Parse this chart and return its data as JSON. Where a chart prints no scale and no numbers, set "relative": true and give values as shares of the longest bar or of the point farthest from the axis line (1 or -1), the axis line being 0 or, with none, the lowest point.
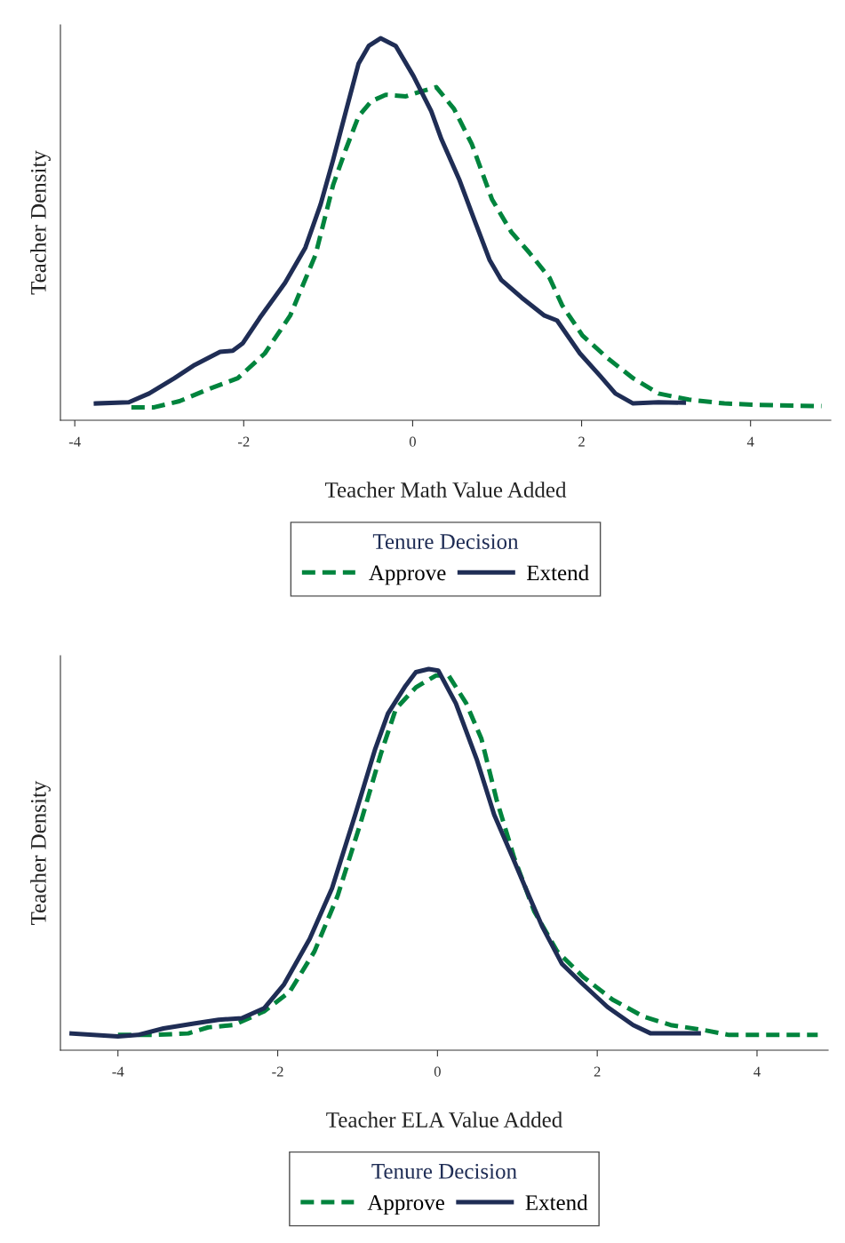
{
  "chart_data": [
    {
      "type": "line",
      "relative": true,
      "xlabel": "Teacher Math Value Added",
      "ylabel": "Teacher Density",
      "legend_title": "Tenure Decision",
      "legend": "bottom",
      "xlim": [
        -4.17,
        4.95
      ],
      "xticks": [
        -4,
        -2,
        0,
        2,
        4
      ],
      "grid": false,
      "marker": "none",
      "series": [
        {
          "name": "Approve",
          "color": "#00843d",
          "line_style": "dashed",
          "x": [
            -3.33,
            -3.06,
            -2.76,
            -2.4,
            -2.07,
            -1.75,
            -1.45,
            -1.15,
            -0.94,
            -0.79,
            -0.64,
            -0.49,
            -0.32,
            -0.08,
            0.1,
            0.28,
            0.49,
            0.7,
            0.94,
            1.17,
            1.38,
            1.62,
            1.77,
            2.01,
            2.31,
            2.61,
            2.91,
            3.27,
            3.69,
            4.1,
            4.84
          ],
          "values": [
            0.034,
            0.034,
            0.05,
            0.083,
            0.11,
            0.175,
            0.274,
            0.433,
            0.617,
            0.71,
            0.796,
            0.835,
            0.852,
            0.848,
            0.861,
            0.872,
            0.815,
            0.723,
            0.578,
            0.492,
            0.439,
            0.373,
            0.301,
            0.222,
            0.162,
            0.11,
            0.07,
            0.054,
            0.044,
            0.04,
            0.037
          ]
        },
        {
          "name": "Extend",
          "color": "#1f2d55",
          "line_style": "solid",
          "x": [
            -3.75,
            -3.36,
            -3.12,
            -2.82,
            -2.58,
            -2.28,
            -2.13,
            -2.01,
            -1.81,
            -1.51,
            -1.27,
            -1.09,
            -0.94,
            -0.79,
            -0.64,
            -0.52,
            -0.38,
            -0.2,
            0.01,
            0.22,
            0.34,
            0.55,
            0.73,
            0.91,
            1.05,
            1.29,
            1.56,
            1.71,
            1.98,
            2.22,
            2.4,
            2.61,
            2.91,
            3.21
          ],
          "values": [
            0.044,
            0.047,
            0.07,
            0.11,
            0.145,
            0.179,
            0.182,
            0.202,
            0.268,
            0.36,
            0.452,
            0.565,
            0.683,
            0.809,
            0.934,
            0.98,
            1.0,
            0.98,
            0.901,
            0.809,
            0.736,
            0.631,
            0.525,
            0.42,
            0.367,
            0.321,
            0.274,
            0.261,
            0.175,
            0.116,
            0.07,
            0.044,
            0.047,
            0.046
          ]
        }
      ]
    },
    {
      "type": "line",
      "relative": true,
      "xlabel": "Teacher ELA Value Added",
      "ylabel": "Teacher Density",
      "legend_title": "Tenure Decision",
      "legend": "bottom",
      "xlim": [
        -4.72,
        4.89
      ],
      "xticks": [
        -4,
        -2,
        0,
        2,
        4
      ],
      "grid": false,
      "marker": "none",
      "series": [
        {
          "name": "Approve",
          "color": "#00843d",
          "line_style": "dashed",
          "x": [
            -4.0,
            -3.56,
            -3.12,
            -2.87,
            -2.55,
            -2.17,
            -1.85,
            -1.54,
            -1.25,
            -0.97,
            -0.71,
            -0.52,
            -0.27,
            -0.02,
            0.14,
            0.36,
            0.55,
            0.74,
            0.96,
            1.21,
            1.5,
            1.82,
            2.19,
            2.57,
            2.92,
            3.33,
            3.65,
            4.76
          ],
          "values": [
            0.04,
            0.04,
            0.044,
            0.06,
            0.066,
            0.102,
            0.153,
            0.259,
            0.405,
            0.591,
            0.777,
            0.896,
            0.952,
            0.983,
            0.983,
            0.91,
            0.817,
            0.657,
            0.505,
            0.365,
            0.259,
            0.193,
            0.133,
            0.089,
            0.066,
            0.053,
            0.04,
            0.04
          ]
        },
        {
          "name": "Extend",
          "color": "#1f2d55",
          "line_style": "solid",
          "x": [
            -4.58,
            -4.0,
            -3.75,
            -3.43,
            -3.05,
            -2.74,
            -2.45,
            -2.17,
            -1.92,
            -1.6,
            -1.32,
            -1.03,
            -0.78,
            -0.62,
            -0.4,
            -0.27,
            -0.11,
            0.01,
            0.23,
            0.49,
            0.71,
            0.93,
            1.09,
            1.31,
            1.56,
            1.82,
            2.13,
            2.45,
            2.67,
            2.95,
            3.27
          ],
          "values": [
            0.044,
            0.036,
            0.04,
            0.057,
            0.07,
            0.08,
            0.084,
            0.11,
            0.173,
            0.292,
            0.425,
            0.618,
            0.79,
            0.883,
            0.956,
            0.992,
            1.0,
            0.996,
            0.91,
            0.764,
            0.618,
            0.511,
            0.432,
            0.325,
            0.226,
            0.173,
            0.113,
            0.066,
            0.044,
            0.044,
            0.044
          ]
        }
      ]
    }
  ]
}
